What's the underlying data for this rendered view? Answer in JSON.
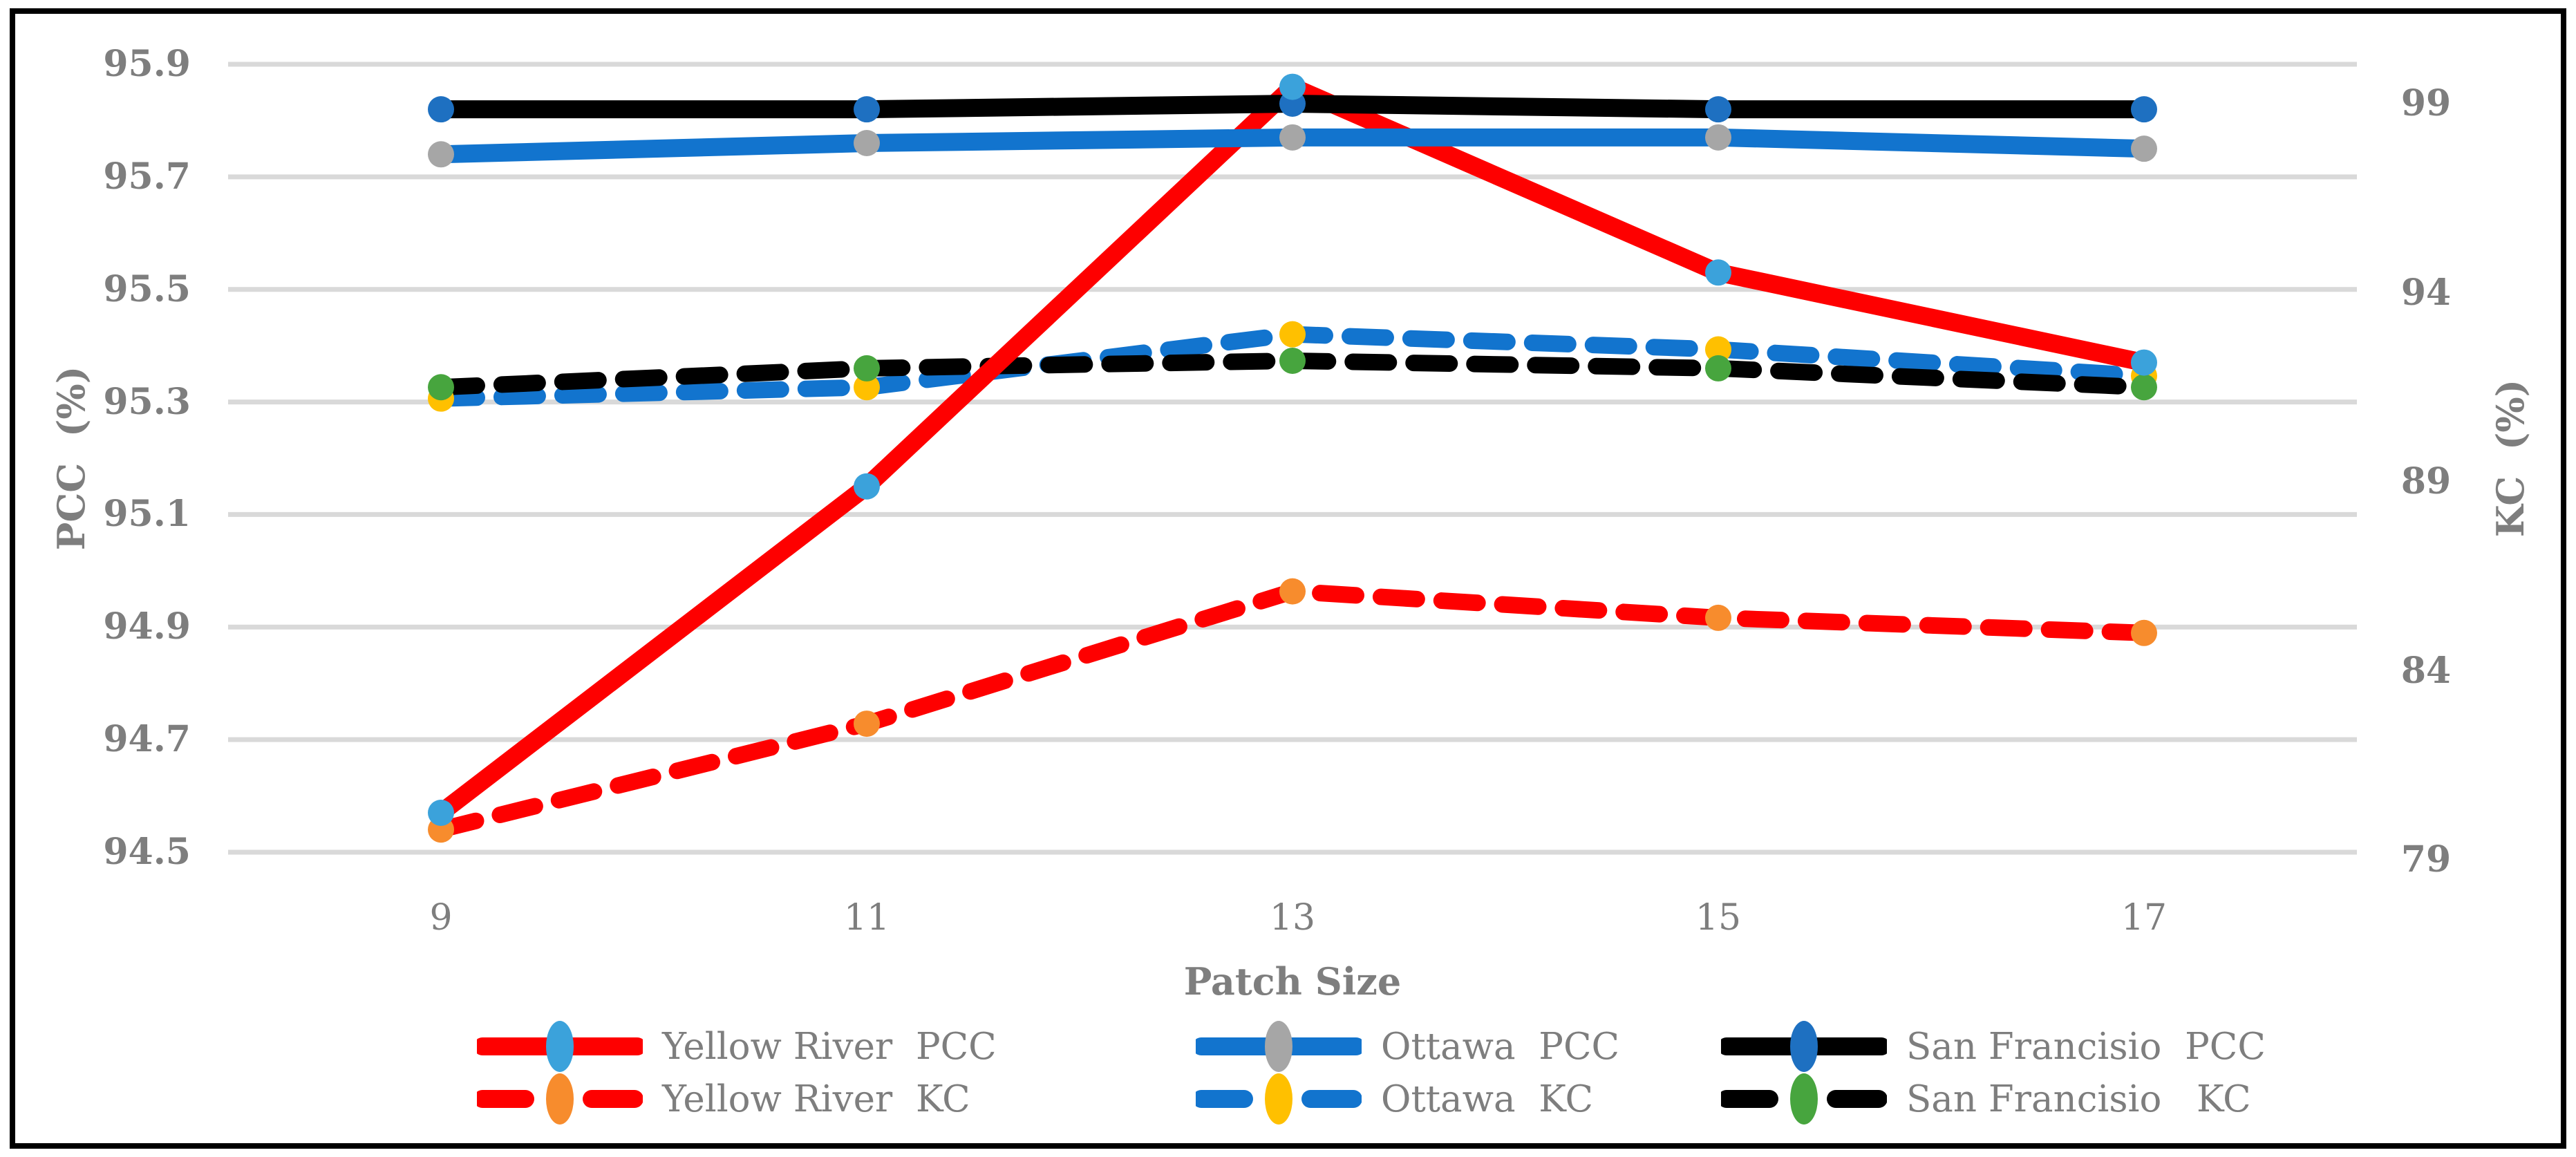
{
  "figure": {
    "background": "#FFFFFF",
    "border_color": "#000000",
    "text_color": "#7E7E7E",
    "grid_color": "#D9D9D9"
  },
  "chart_data": {
    "type": "line",
    "title": "",
    "x": [
      9,
      11,
      13,
      15,
      17
    ],
    "x_axis": {
      "title": "Patch Size",
      "tick_labels": [
        "9",
        "11",
        "13",
        "15",
        "17"
      ]
    },
    "left_axis": {
      "title": "PCC  (%)",
      "min": 94.5,
      "max": 95.9,
      "tick_step": 0.2,
      "tick_labels": [
        "95.9",
        "95.7",
        "95.5",
        "95.3",
        "95.1",
        "94.9",
        "94.7",
        "94.5"
      ]
    },
    "right_axis": {
      "title": "KC  (%)",
      "min": 79,
      "max": 99,
      "tick_step": 5,
      "tick_labels": [
        "99",
        "94",
        "89",
        "84",
        "79"
      ]
    },
    "grid": {
      "show": true,
      "color": "#D9D9D9"
    },
    "legend": {
      "position": "bottom",
      "rows": 2,
      "columns": 3
    },
    "series": [
      {
        "name": "Yellow River  PCC",
        "axis": "left",
        "line_style": "solid",
        "line_color": "#FE0000",
        "marker_color": "#3BA2DB",
        "values": [
          94.57,
          95.15,
          95.86,
          95.53,
          95.37
        ]
      },
      {
        "name": "Ottawa  PCC",
        "axis": "left",
        "line_style": "solid",
        "line_color": "#1274CE",
        "marker_color": "#A6A6A6",
        "values": [
          95.74,
          95.76,
          95.77,
          95.77,
          95.75
        ]
      },
      {
        "name": "San Francisio  PCC",
        "axis": "left",
        "line_style": "solid",
        "line_color": "#000000",
        "marker_color": "#1E70C1",
        "values": [
          95.82,
          95.82,
          95.83,
          95.82,
          95.82
        ]
      },
      {
        "name": "Yellow River  KC",
        "axis": "right",
        "line_style": "dashed",
        "line_color": "#FE0000",
        "marker_color": "#F78C2D",
        "values": [
          79.8,
          82.6,
          86.1,
          85.4,
          85.0
        ]
      },
      {
        "name": "Ottawa  KC",
        "axis": "right",
        "line_style": "dashed",
        "line_color": "#1274CE",
        "marker_color": "#FFC000",
        "values": [
          91.2,
          91.5,
          92.9,
          92.5,
          91.8
        ]
      },
      {
        "name": "San Francisio   KC",
        "axis": "right",
        "line_style": "dashed",
        "line_color": "#000000",
        "marker_color": "#47A53E",
        "values": [
          91.5,
          92.0,
          92.2,
          92.0,
          91.5
        ]
      }
    ]
  }
}
